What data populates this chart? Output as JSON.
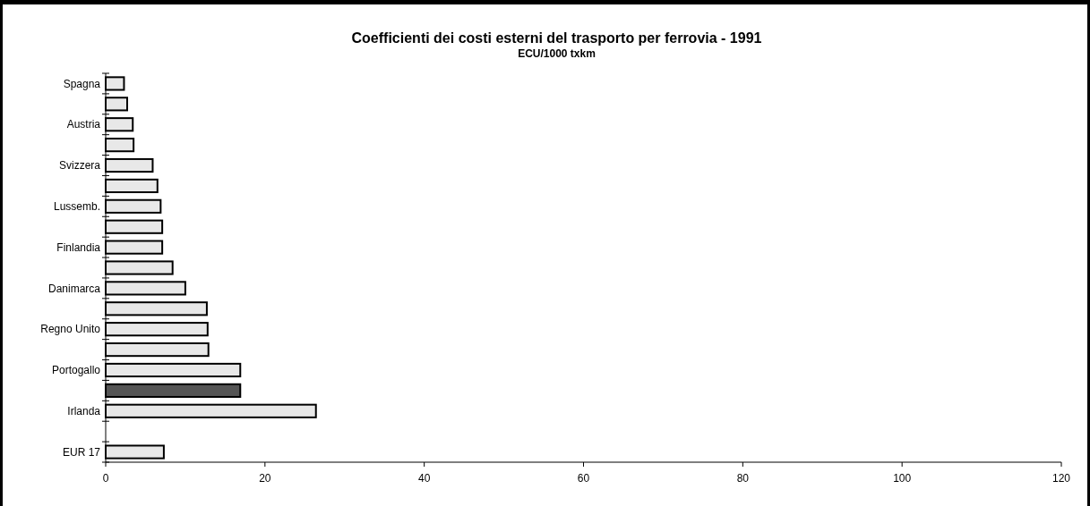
{
  "chart_data": {
    "type": "bar",
    "orientation": "horizontal",
    "title": "Coefficienti dei costi esterni del trasporto per ferrovia - 1991",
    "subtitle": "ECU/1000 txkm",
    "categories": [
      "Spagna",
      null,
      "Austria",
      null,
      "Svizzera",
      null,
      "Lussemb.",
      null,
      "Finlandia",
      null,
      "Danimarca",
      null,
      "Regno Unito",
      null,
      "Portogallo",
      null,
      "Irlanda",
      null,
      "EUR 17"
    ],
    "values": [
      2.3,
      2.7,
      3.4,
      3.5,
      5.9,
      6.5,
      6.9,
      7.1,
      7.1,
      8.4,
      10,
      12.7,
      12.8,
      12.9,
      16.9,
      16.9,
      26.4,
      null,
      7.3
    ],
    "colors": [
      "#e8e8e8",
      "#e8e8e8",
      "#e8e8e8",
      "#e8e8e8",
      "#e8e8e8",
      "#e8e8e8",
      "#e8e8e8",
      "#e8e8e8",
      "#e8e8e8",
      "#e8e8e8",
      "#e8e8e8",
      "#e8e8e8",
      "#e8e8e8",
      "#e8e8e8",
      "#e8e8e8",
      "#555555",
      "#e8e8e8",
      null,
      "#e8e8e8"
    ],
    "xlim": [
      0,
      120
    ],
    "xticks": [
      0,
      20,
      40,
      60,
      80,
      100,
      120
    ],
    "grid": false
  }
}
